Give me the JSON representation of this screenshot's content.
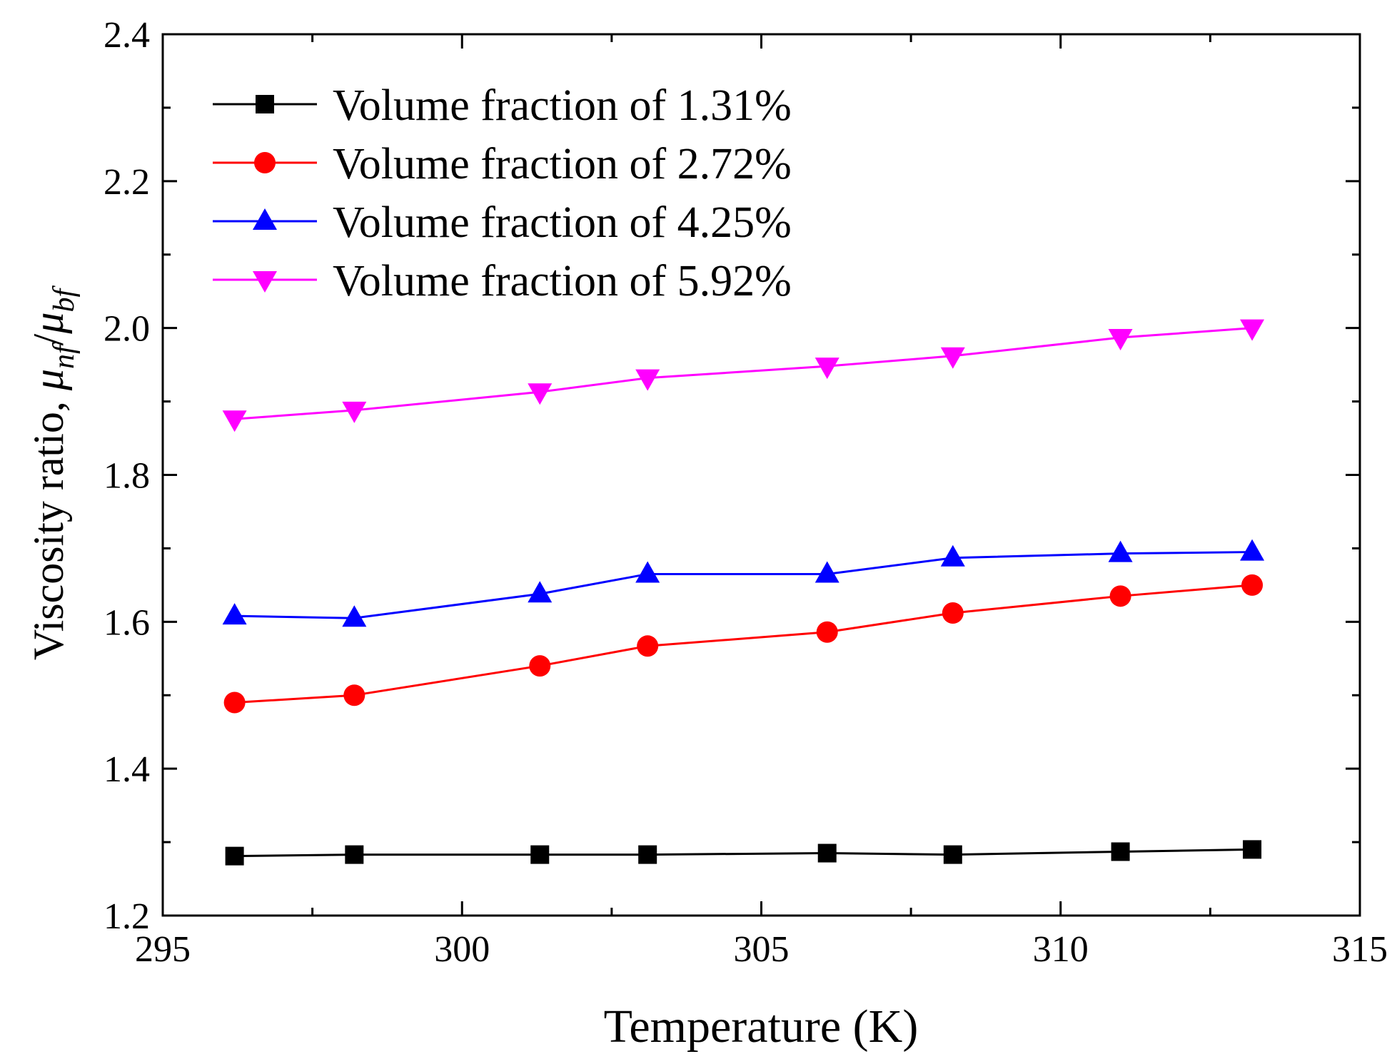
{
  "chart_data": {
    "type": "line",
    "xlabel": "Temperature (K)",
    "ylabel": {
      "prefix": "Viscosity ratio, ",
      "mu": "μ",
      "sub_num": "nf",
      "slash": "/",
      "sub_den": "bf"
    },
    "xlim": [
      295,
      315
    ],
    "ylim": [
      1.2,
      2.4
    ],
    "xticks": [
      "295",
      "300",
      "305",
      "310",
      "315"
    ],
    "xtick_values": [
      295,
      300,
      305,
      310,
      315
    ],
    "yticks": [
      "1.2",
      "1.4",
      "1.6",
      "1.8",
      "2.0",
      "2.2",
      "2.4"
    ],
    "ytick_values": [
      1.2,
      1.4,
      1.6,
      1.8,
      2.0,
      2.2,
      2.4
    ],
    "x": [
      296.2,
      298.2,
      301.3,
      303.1,
      306.1,
      308.2,
      311.0,
      313.2
    ],
    "legend_position": "top-left",
    "series": [
      {
        "name": "Volume fraction of 1.31%",
        "color": "#000000",
        "marker": "square",
        "values": [
          1.281,
          1.283,
          1.283,
          1.283,
          1.285,
          1.283,
          1.287,
          1.29
        ]
      },
      {
        "name": "Volume fraction of 2.72%",
        "color": "#ff0000",
        "marker": "circle",
        "values": [
          1.49,
          1.5,
          1.54,
          1.567,
          1.586,
          1.612,
          1.635,
          1.65
        ]
      },
      {
        "name": "Volume fraction of 4.25%",
        "color": "#0000ff",
        "marker": "triangle-up",
        "values": [
          1.608,
          1.605,
          1.638,
          1.665,
          1.665,
          1.687,
          1.693,
          1.695
        ]
      },
      {
        "name": "Volume fraction of 5.92%",
        "color": "#ff00ff",
        "marker": "triangle-down",
        "values": [
          1.876,
          1.888,
          1.913,
          1.932,
          1.948,
          1.962,
          1.987,
          2.0
        ]
      }
    ]
  }
}
